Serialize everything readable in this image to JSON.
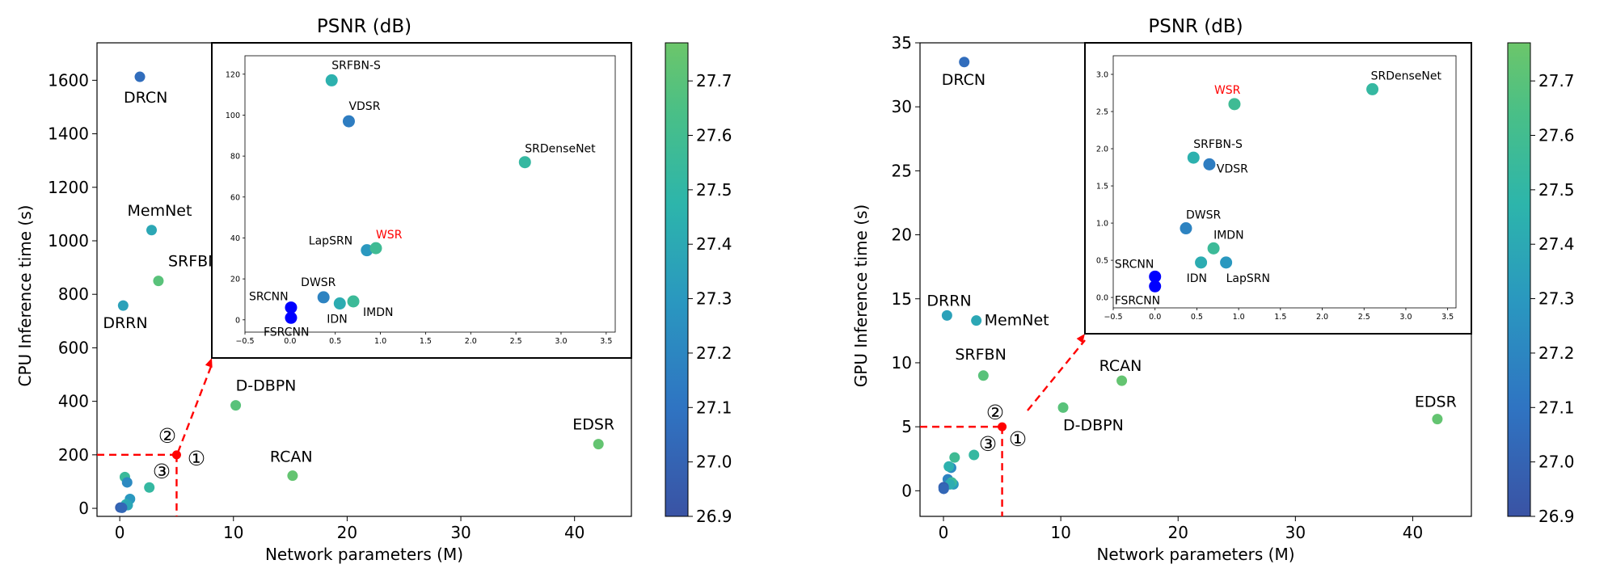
{
  "chart_data": [
    {
      "type": "scatter",
      "title": "PSNR (dB)",
      "xlabel": "Network parameters (M)",
      "ylabel": "CPU Inference time (s)",
      "xlim": [
        -2,
        45
      ],
      "ylim": [
        -30,
        1740
      ],
      "xticks": [
        "0",
        "10",
        "20",
        "30",
        "40"
      ],
      "yticks": [
        "0",
        "200",
        "400",
        "600",
        "800",
        "1000",
        "1200",
        "1400",
        "1600"
      ],
      "colorbar": {
        "ticks": [
          "26.9",
          "27.0",
          "27.1",
          "27.2",
          "27.3",
          "27.4",
          "27.5",
          "27.6",
          "27.7"
        ],
        "min": 26.9,
        "max": 27.77
      },
      "points": [
        {
          "name": "DRCN",
          "x": 1.77,
          "y": 1613,
          "psnr": 27.06
        },
        {
          "name": "MemNet",
          "x": 2.8,
          "y": 1040,
          "psnr": 27.39
        },
        {
          "name": "SRFBN",
          "x": 3.4,
          "y": 850,
          "psnr": 27.7
        },
        {
          "name": "DRRN",
          "x": 0.3,
          "y": 758,
          "psnr": 27.35
        },
        {
          "name": "D-DBPN",
          "x": 10.2,
          "y": 385,
          "psnr": 27.7
        },
        {
          "name": "RCAN",
          "x": 15.2,
          "y": 122,
          "psnr": 27.74
        },
        {
          "name": "EDSR",
          "x": 42.1,
          "y": 240,
          "psnr": 27.74
        },
        {
          "name": "",
          "x": 0.45,
          "y": 117,
          "psnr": 27.55
        },
        {
          "name": "",
          "x": 0.65,
          "y": 97,
          "psnr": 27.22
        },
        {
          "name": "",
          "x": 2.6,
          "y": 78,
          "psnr": 27.52
        },
        {
          "name": "",
          "x": 0.9,
          "y": 35,
          "psnr": 27.3
        },
        {
          "name": "",
          "x": 0.55,
          "y": 15,
          "psnr": 27.45
        },
        {
          "name": "",
          "x": 0.7,
          "y": 12,
          "psnr": 27.38
        },
        {
          "name": "",
          "x": 0.05,
          "y": 3,
          "psnr": 26.98
        },
        {
          "name": "",
          "x": 0.2,
          "y": 2,
          "psnr": 27.02
        }
      ],
      "marker": {
        "x": 5,
        "y": 200,
        "color": "#ff0000"
      },
      "annotations": [
        "①",
        "②",
        "③"
      ],
      "inset": {
        "xlim": [
          -0.5,
          3.6
        ],
        "ylim": [
          -6,
          129
        ],
        "xticks": [
          "−0.5",
          "0.0",
          "0.5",
          "1.0",
          "1.5",
          "2.0",
          "2.5",
          "3.0",
          "3.5"
        ],
        "yticks": [
          "0",
          "20",
          "40",
          "60",
          "80",
          "100",
          "120"
        ],
        "points": [
          {
            "name": "SRFBN-S",
            "x": 0.46,
            "y": 117,
            "psnr": 27.45,
            "highlight": false
          },
          {
            "name": "VDSR",
            "x": 0.65,
            "y": 97,
            "psnr": 27.15,
            "highlight": false
          },
          {
            "name": "SRDenseNet",
            "x": 2.6,
            "y": 77,
            "psnr": 27.52,
            "highlight": false
          },
          {
            "name": "LapSRN",
            "x": 0.85,
            "y": 34,
            "psnr": 27.3,
            "highlight": false
          },
          {
            "name": "WSR",
            "x": 0.95,
            "y": 35,
            "psnr": 27.58,
            "highlight": true
          },
          {
            "name": "DWSR",
            "x": 0.37,
            "y": 11,
            "psnr": 27.18,
            "highlight": false
          },
          {
            "name": "IDN",
            "x": 0.55,
            "y": 8,
            "psnr": 27.42,
            "highlight": false
          },
          {
            "name": "IMDN",
            "x": 0.7,
            "y": 9,
            "psnr": 27.56,
            "highlight": false
          },
          {
            "name": "SRCNN",
            "x": 0.01,
            "y": 6,
            "psnr": 26.6,
            "highlight": false
          },
          {
            "name": "FSRCNN",
            "x": 0.01,
            "y": 1,
            "psnr": 26.6,
            "highlight": false
          }
        ]
      }
    },
    {
      "type": "scatter",
      "title": "PSNR (dB)",
      "xlabel": "Network parameters (M)",
      "ylabel": "GPU Inference time (s)",
      "xlim": [
        -2,
        45
      ],
      "ylim": [
        -2,
        35
      ],
      "xticks": [
        "0",
        "10",
        "20",
        "30",
        "40"
      ],
      "yticks": [
        "0",
        "5",
        "10",
        "15",
        "20",
        "25",
        "30",
        "35"
      ],
      "colorbar": {
        "ticks": [
          "26.9",
          "27.0",
          "27.1",
          "27.2",
          "27.3",
          "27.4",
          "27.5",
          "27.6",
          "27.7"
        ],
        "min": 26.9,
        "max": 27.77
      },
      "points": [
        {
          "name": "DRCN",
          "x": 1.77,
          "y": 33.5,
          "psnr": 27.06
        },
        {
          "name": "DRRN",
          "x": 0.3,
          "y": 13.7,
          "psnr": 27.35
        },
        {
          "name": "MemNet",
          "x": 2.8,
          "y": 13.3,
          "psnr": 27.39
        },
        {
          "name": "SRFBN",
          "x": 3.4,
          "y": 9.0,
          "psnr": 27.7
        },
        {
          "name": "RCAN",
          "x": 15.2,
          "y": 8.6,
          "psnr": 27.74
        },
        {
          "name": "D-DBPN",
          "x": 10.2,
          "y": 6.5,
          "psnr": 27.7
        },
        {
          "name": "EDSR",
          "x": 42.1,
          "y": 5.6,
          "psnr": 27.74
        },
        {
          "name": "",
          "x": 0.95,
          "y": 2.6,
          "psnr": 27.58
        },
        {
          "name": "",
          "x": 2.6,
          "y": 2.8,
          "psnr": 27.52
        },
        {
          "name": "",
          "x": 0.65,
          "y": 1.8,
          "psnr": 27.22
        },
        {
          "name": "",
          "x": 0.46,
          "y": 1.9,
          "psnr": 27.45
        },
        {
          "name": "",
          "x": 0.85,
          "y": 0.5,
          "psnr": 27.3
        },
        {
          "name": "",
          "x": 0.37,
          "y": 0.9,
          "psnr": 27.18
        },
        {
          "name": "",
          "x": 0.7,
          "y": 0.65,
          "psnr": 27.56
        },
        {
          "name": "",
          "x": 0.55,
          "y": 0.5,
          "psnr": 27.42
        },
        {
          "name": "",
          "x": 0.01,
          "y": 0.28,
          "psnr": 26.98
        },
        {
          "name": "",
          "x": 0.02,
          "y": 0.15,
          "psnr": 27.02
        }
      ],
      "marker": {
        "x": 5,
        "y": 5,
        "color": "#ff0000"
      },
      "annotations": [
        "①",
        "②",
        "③"
      ],
      "inset": {
        "xlim": [
          -0.5,
          3.6
        ],
        "ylim": [
          -0.14,
          3.25
        ],
        "xticks": [
          "−0.5",
          "0.0",
          "0.5",
          "1.0",
          "1.5",
          "2.0",
          "2.5",
          "3.0",
          "3.5"
        ],
        "yticks": [
          "0.0",
          "0.5",
          "1.0",
          "1.5",
          "2.0",
          "2.5",
          "3.0"
        ],
        "points": [
          {
            "name": "WSR",
            "x": 0.95,
            "y": 2.6,
            "psnr": 27.58,
            "highlight": true
          },
          {
            "name": "SRDenseNet",
            "x": 2.6,
            "y": 2.8,
            "psnr": 27.52,
            "highlight": false
          },
          {
            "name": "SRFBN-S",
            "x": 0.46,
            "y": 1.88,
            "psnr": 27.45,
            "highlight": false
          },
          {
            "name": "VDSR",
            "x": 0.65,
            "y": 1.79,
            "psnr": 27.15,
            "highlight": false
          },
          {
            "name": "DWSR",
            "x": 0.37,
            "y": 0.93,
            "psnr": 27.18,
            "highlight": false
          },
          {
            "name": "IMDN",
            "x": 0.7,
            "y": 0.66,
            "psnr": 27.56,
            "highlight": false
          },
          {
            "name": "IDN",
            "x": 0.55,
            "y": 0.47,
            "psnr": 27.42,
            "highlight": false
          },
          {
            "name": "LapSRN",
            "x": 0.85,
            "y": 0.47,
            "psnr": 27.3,
            "highlight": false
          },
          {
            "name": "SRCNN",
            "x": 0.0,
            "y": 0.28,
            "psnr": 26.6,
            "highlight": false
          },
          {
            "name": "FSRCNN",
            "x": 0.0,
            "y": 0.15,
            "psnr": 26.6,
            "highlight": false
          }
        ]
      }
    }
  ]
}
